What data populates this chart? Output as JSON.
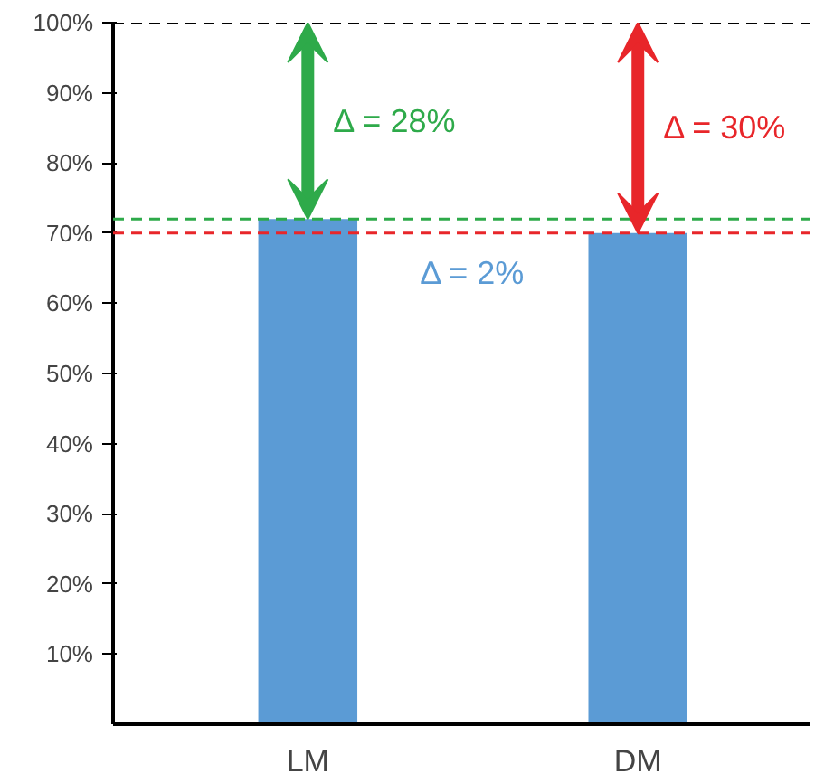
{
  "chart_data": {
    "type": "bar",
    "categories": [
      "LM",
      "DM"
    ],
    "values": [
      72,
      70
    ],
    "color": "#5b9bd5",
    "ylim": [
      0,
      100
    ],
    "yticks": [
      {
        "value": 10,
        "label": "10%"
      },
      {
        "value": 20,
        "label": "20%"
      },
      {
        "value": 30,
        "label": "30%"
      },
      {
        "value": 40,
        "label": "40%"
      },
      {
        "value": 50,
        "label": "50%"
      },
      {
        "value": 60,
        "label": "60%"
      },
      {
        "value": 70,
        "label": "70%"
      },
      {
        "value": 80,
        "label": "80%"
      },
      {
        "value": 90,
        "label": "90%"
      },
      {
        "value": 100,
        "label": "100%"
      }
    ],
    "ref_lines": [
      {
        "axis": "y",
        "value": 72,
        "color": "#2eaa4a",
        "line_style": "dashed"
      },
      {
        "axis": "y",
        "value": 70,
        "color": "#e8262a",
        "line_style": "dashed"
      },
      {
        "axis": "y",
        "value": 100,
        "color": "#000000",
        "line_style": "dashed"
      }
    ],
    "annotations": [
      "Δ = 28%",
      "Δ = 30%",
      "Δ = 2%"
    ],
    "grid": false
  }
}
